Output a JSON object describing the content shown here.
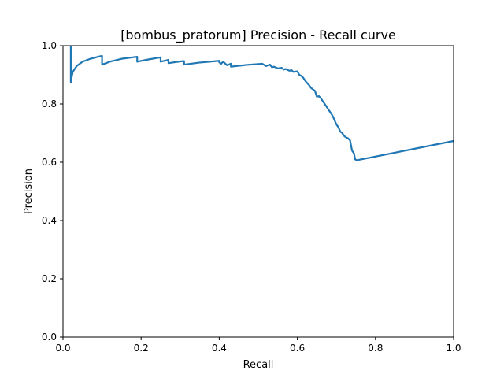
{
  "chart_data": {
    "type": "line",
    "title": "[bombus_pratorum] Precision - Recall curve",
    "xlabel": "Recall",
    "ylabel": "Precision",
    "xlim": [
      0.0,
      1.0
    ],
    "ylim": [
      0.0,
      1.0
    ],
    "xticks": [
      "0.0",
      "0.2",
      "0.4",
      "0.6",
      "0.8",
      "1.0"
    ],
    "yticks": [
      "0.0",
      "0.2",
      "0.4",
      "0.6",
      "0.8",
      "1.0"
    ],
    "grid": false,
    "legend": "none",
    "series": [
      {
        "color": "#1f77b4",
        "x": [
          0.02,
          0.02,
          0.022,
          0.025,
          0.035,
          0.05,
          0.07,
          0.09,
          0.1,
          0.1,
          0.12,
          0.15,
          0.19,
          0.19,
          0.22,
          0.25,
          0.25,
          0.27,
          0.27,
          0.3,
          0.31,
          0.31,
          0.35,
          0.4,
          0.4,
          0.405,
          0.41,
          0.42,
          0.43,
          0.43,
          0.47,
          0.51,
          0.52,
          0.53,
          0.535,
          0.54,
          0.55,
          0.56,
          0.565,
          0.57,
          0.58,
          0.585,
          0.59,
          0.6,
          0.605,
          0.61,
          0.615,
          0.62,
          0.625,
          0.63,
          0.635,
          0.64,
          0.645,
          0.65,
          0.655,
          0.66,
          0.665,
          0.67,
          0.675,
          0.68,
          0.685,
          0.69,
          0.695,
          0.7,
          0.705,
          0.71,
          0.715,
          0.72,
          0.725,
          0.73,
          0.735,
          0.74,
          0.745,
          0.748,
          0.752,
          0.76,
          1.0
        ],
        "y": [
          1.0,
          0.875,
          0.89,
          0.91,
          0.93,
          0.945,
          0.955,
          0.962,
          0.965,
          0.935,
          0.945,
          0.955,
          0.962,
          0.945,
          0.953,
          0.96,
          0.945,
          0.951,
          0.94,
          0.946,
          0.947,
          0.935,
          0.942,
          0.948,
          0.943,
          0.938,
          0.945,
          0.933,
          0.938,
          0.928,
          0.934,
          0.938,
          0.93,
          0.935,
          0.926,
          0.928,
          0.922,
          0.924,
          0.918,
          0.92,
          0.914,
          0.916,
          0.91,
          0.912,
          0.9,
          0.896,
          0.89,
          0.88,
          0.872,
          0.865,
          0.855,
          0.85,
          0.845,
          0.825,
          0.827,
          0.82,
          0.81,
          0.8,
          0.79,
          0.78,
          0.77,
          0.76,
          0.745,
          0.73,
          0.72,
          0.705,
          0.7,
          0.69,
          0.685,
          0.682,
          0.675,
          0.64,
          0.63,
          0.61,
          0.607,
          0.609,
          0.673
        ]
      }
    ]
  }
}
